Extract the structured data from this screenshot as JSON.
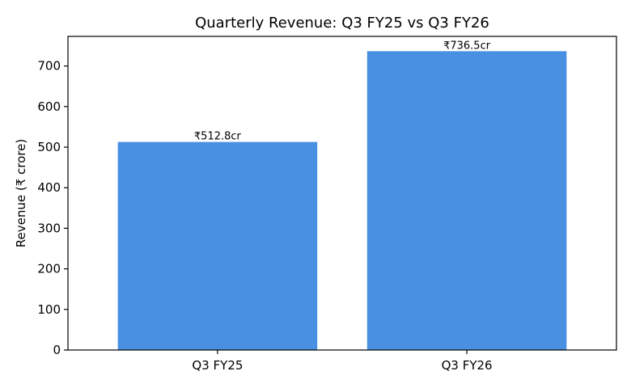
{
  "chart_data": {
    "type": "bar",
    "title": "Quarterly Revenue: Q3 FY25 vs Q3 FY26",
    "xlabel": "",
    "ylabel": "Revenue (₹ crore)",
    "categories": [
      "Q3 FY25",
      "Q3 FY26"
    ],
    "values": [
      512.8,
      736.5
    ],
    "value_labels": [
      "₹512.8cr",
      "₹736.5cr"
    ],
    "ylim": [
      0,
      773
    ],
    "yticks": [
      0,
      100,
      200,
      300,
      400,
      500,
      600,
      700
    ],
    "grid": false,
    "bar_color": "#4a90e2"
  }
}
